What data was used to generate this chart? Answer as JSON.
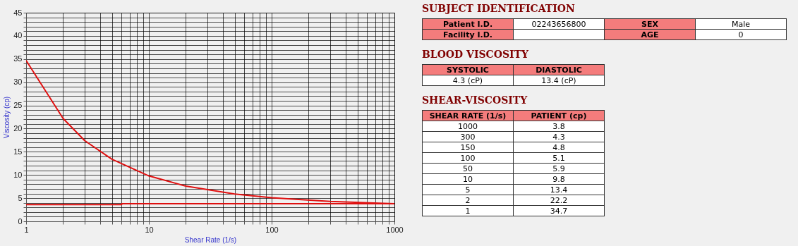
{
  "chart_data": [
    {
      "type": "line",
      "xlabel": "Shear Rate (1/s)",
      "ylabel": "Viscosity (cp)",
      "log": "x",
      "grid": true,
      "marker": "none",
      "line_style": "solid",
      "legend": false,
      "series": [
        {
          "color": "#e01010",
          "x": [
            1,
            2,
            3,
            5,
            10,
            20,
            50,
            100,
            150,
            300,
            1000
          ],
          "values": [
            34.7,
            22.2,
            17.4,
            13.4,
            9.8,
            7.6,
            5.9,
            5.1,
            4.8,
            4.3,
            3.8
          ]
        },
        {
          "color": "#e01010",
          "x": [
            1,
            6,
            6,
            1000
          ],
          "values": [
            3.6,
            3.6,
            3.8,
            3.8
          ]
        }
      ],
      "xlim": [
        1,
        1000
      ],
      "ylim": [
        0,
        45
      ],
      "xticks": [
        1,
        {
          "value": 2,
          "label": null
        },
        {
          "value": 3,
          "label": null
        },
        {
          "value": 4,
          "label": null
        },
        {
          "value": 5,
          "label": null
        },
        {
          "value": 6,
          "label": null
        },
        {
          "value": 7,
          "label": null
        },
        {
          "value": 8,
          "label": null
        },
        {
          "value": 9,
          "label": null
        },
        10,
        {
          "value": 20,
          "label": null
        },
        {
          "value": 30,
          "label": null
        },
        {
          "value": 40,
          "label": null
        },
        {
          "value": 50,
          "label": null
        },
        {
          "value": 60,
          "label": null
        },
        {
          "value": 70,
          "label": null
        },
        {
          "value": 80,
          "label": null
        },
        {
          "value": 90,
          "label": null
        },
        100,
        {
          "value": 200,
          "label": null
        },
        {
          "value": 300,
          "label": null
        },
        {
          "value": 400,
          "label": null
        },
        {
          "value": 500,
          "label": null
        },
        {
          "value": 600,
          "label": null
        },
        {
          "value": 700,
          "label": null
        },
        {
          "value": 800,
          "label": null
        },
        {
          "value": 900,
          "label": null
        },
        1000
      ],
      "yticks": [
        0,
        {
          "value": 1,
          "label": null
        },
        {
          "value": 2,
          "label": null
        },
        {
          "value": 3,
          "label": null
        },
        {
          "value": 4,
          "label": null
        },
        5,
        {
          "value": 6,
          "label": null
        },
        {
          "value": 7,
          "label": null
        },
        {
          "value": 8,
          "label": null
        },
        {
          "value": 9,
          "label": null
        },
        10,
        {
          "value": 11,
          "label": null
        },
        {
          "value": 12,
          "label": null
        },
        {
          "value": 13,
          "label": null
        },
        {
          "value": 14,
          "label": null
        },
        15,
        {
          "value": 16,
          "label": null
        },
        {
          "value": 17,
          "label": null
        },
        {
          "value": 18,
          "label": null
        },
        {
          "value": 19,
          "label": null
        },
        20,
        {
          "value": 21,
          "label": null
        },
        {
          "value": 22,
          "label": null
        },
        {
          "value": 23,
          "label": null
        },
        {
          "value": 24,
          "label": null
        },
        25,
        {
          "value": 26,
          "label": null
        },
        {
          "value": 27,
          "label": null
        },
        {
          "value": 28,
          "label": null
        },
        {
          "value": 29,
          "label": null
        },
        30,
        {
          "value": 31,
          "label": null
        },
        {
          "value": 32,
          "label": null
        },
        {
          "value": 33,
          "label": null
        },
        {
          "value": 34,
          "label": null
        },
        35,
        {
          "value": 36,
          "label": null
        },
        {
          "value": 37,
          "label": null
        },
        {
          "value": 38,
          "label": null
        },
        {
          "value": 39,
          "label": null
        },
        40,
        {
          "value": 41,
          "label": null
        },
        {
          "value": 42,
          "label": null
        },
        {
          "value": 43,
          "label": null
        },
        {
          "value": 44,
          "label": null
        },
        45
      ]
    },
    {
      "type": "other",
      "title": "SUBJECT IDENTIFICATION",
      "annotations": [
        "Patient I.D.",
        "02243656800",
        "SEX",
        "Male",
        "Facility I.D.",
        null,
        "AGE",
        "0"
      ]
    },
    {
      "type": "other",
      "title": "BLOOD VISCOSITY",
      "annotations": [
        "SYSTOLIC",
        "DIASTOLIC",
        "4.3 (cP)",
        "13.4 (cP)"
      ]
    },
    {
      "type": "other",
      "title": "SHEAR-VISCOSITY",
      "annotations": [
        "SHEAR RATE (1/s)",
        "PATIENT (cp)",
        "1000",
        "3.8",
        "300",
        "4.3",
        "150",
        "4.8",
        "100",
        "5.1",
        "50",
        "5.9",
        "10",
        "9.8",
        "5",
        "13.4",
        "2",
        "22.2",
        "1",
        "34.7"
      ]
    }
  ]
}
